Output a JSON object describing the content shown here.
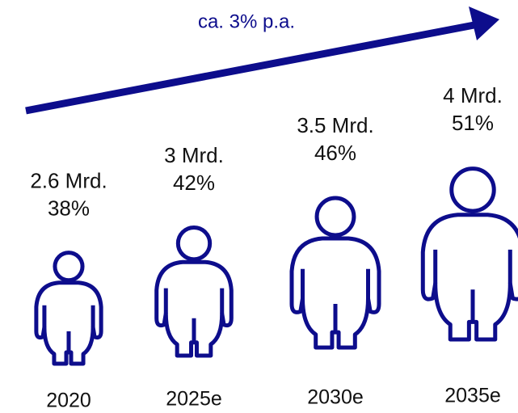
{
  "chart_data": {
    "type": "pictograph",
    "annotation": "ca. 3% p.a.",
    "categories": [
      "2020",
      "2025e",
      "2030e",
      "2035e"
    ],
    "values": [
      2.6,
      3,
      3.5,
      4
    ],
    "value_labels": [
      "2.6 Mrd.",
      "3 Mrd.",
      "3.5 Mrd.",
      "4 Mrd."
    ],
    "shares": [
      38,
      42,
      46,
      51
    ],
    "share_labels": [
      "38%",
      "42%",
      "46%",
      "51%"
    ],
    "color": "#0d0d8c"
  }
}
